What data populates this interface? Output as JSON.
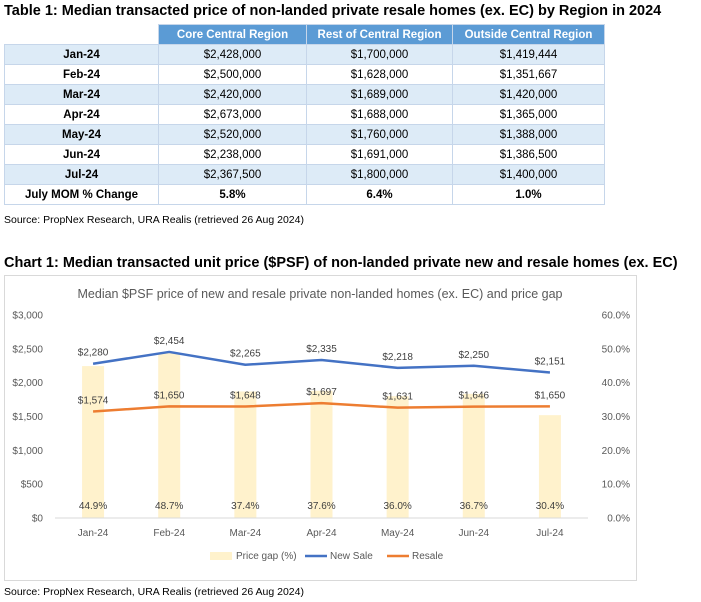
{
  "table": {
    "title": "Table 1: Median transacted price of non-landed private resale homes (ex. EC) by Region in 2024",
    "headers": [
      "Core Central Region",
      "Rest of Central Region",
      "Outside Central Region"
    ],
    "rows": [
      {
        "month": "Jan-24",
        "ccr": "$2,428,000",
        "rcr": "$1,700,000",
        "ocr": "$1,419,444"
      },
      {
        "month": "Feb-24",
        "ccr": "$2,500,000",
        "rcr": "$1,628,000",
        "ocr": "$1,351,667"
      },
      {
        "month": "Mar-24",
        "ccr": "$2,420,000",
        "rcr": "$1,689,000",
        "ocr": "$1,420,000"
      },
      {
        "month": "Apr-24",
        "ccr": "$2,673,000",
        "rcr": "$1,688,000",
        "ocr": "$1,365,000"
      },
      {
        "month": "May-24",
        "ccr": "$2,520,000",
        "rcr": "$1,760,000",
        "ocr": "$1,388,000"
      },
      {
        "month": "Jun-24",
        "ccr": "$2,238,000",
        "rcr": "$1,691,000",
        "ocr": "$1,386,500"
      },
      {
        "month": "Jul-24",
        "ccr": "$2,367,500",
        "rcr": "$1,800,000",
        "ocr": "$1,400,000"
      }
    ],
    "mom": {
      "label": "July MOM % Change",
      "ccr": "5.8%",
      "rcr": "6.4%",
      "ocr": "1.0%"
    }
  },
  "source1": "Source: PropNex Research, URA Realis (retrieved 26 Aug 2024)",
  "chart_heading": "Chart 1: Median transacted unit price ($PSF) of non-landed private new and resale homes (ex. EC)",
  "source2": "Source: PropNex Research, URA Realis (retrieved 26 Aug 2024)",
  "chart_data": {
    "type": "bar",
    "title": "Median $PSF price of new and resale private non-landed homes (ex. EC) and price gap",
    "categories": [
      "Jan-24",
      "Feb-24",
      "Mar-24",
      "Apr-24",
      "May-24",
      "Jun-24",
      "Jul-24"
    ],
    "y_left": {
      "min": 0,
      "max": 3000,
      "ticks": [
        "$0",
        "$500",
        "$1,000",
        "$1,500",
        "$2,000",
        "$2,500",
        "$3,000"
      ]
    },
    "y_right": {
      "min": 0,
      "max": 60,
      "ticks": [
        "0.0%",
        "10.0%",
        "20.0%",
        "30.0%",
        "40.0%",
        "50.0%",
        "60.0%"
      ]
    },
    "grid": false,
    "legend_position": "bottom",
    "series": [
      {
        "name": "Price gap (%)",
        "type": "bar",
        "axis": "right",
        "color": "#fff2cc",
        "values": [
          44.9,
          48.7,
          37.4,
          37.6,
          36.0,
          36.7,
          30.4
        ],
        "labels": [
          "44.9%",
          "48.7%",
          "37.4%",
          "37.6%",
          "36.0%",
          "36.7%",
          "30.4%"
        ]
      },
      {
        "name": "New Sale",
        "type": "line",
        "axis": "left",
        "color": "#4472c4",
        "values": [
          2280,
          2454,
          2265,
          2335,
          2218,
          2250,
          2151
        ],
        "labels": [
          "$2,280",
          "$2,454",
          "$2,265",
          "$2,335",
          "$2,218",
          "$2,250",
          "$2,151"
        ]
      },
      {
        "name": "Resale",
        "type": "line",
        "axis": "left",
        "color": "#ed7d31",
        "values": [
          1574,
          1650,
          1648,
          1697,
          1631,
          1646,
          1650
        ],
        "labels": [
          "$1,574",
          "$1,650",
          "$1,648",
          "$1,697",
          "$1,631",
          "$1,646",
          "$1,650"
        ]
      }
    ]
  }
}
